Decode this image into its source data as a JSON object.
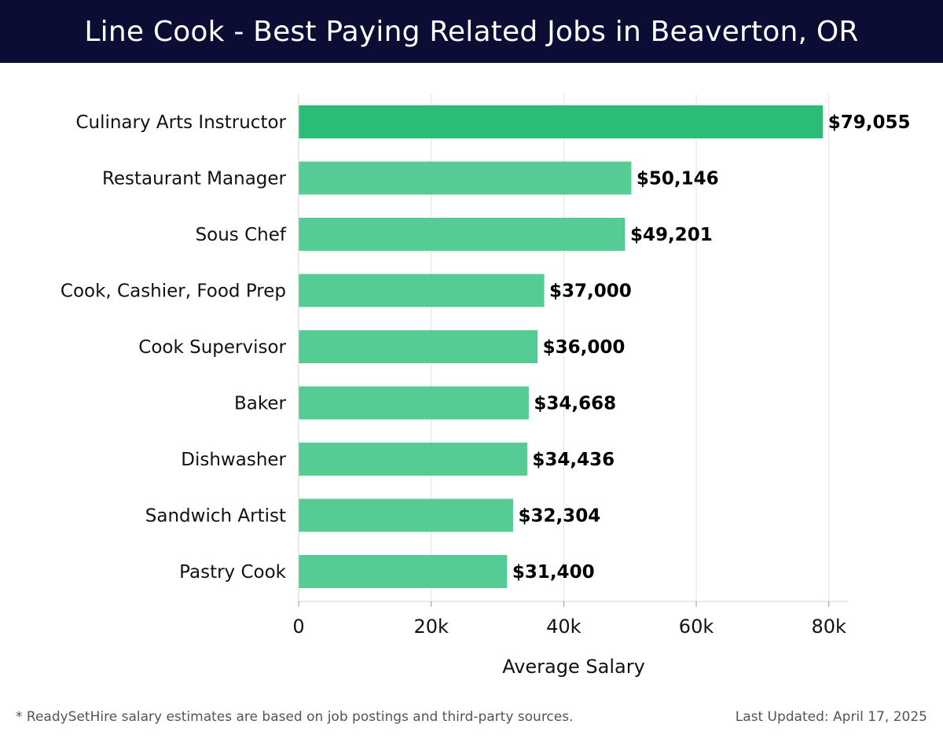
{
  "header": {
    "title": "Line Cook - Best Paying Related Jobs in Beaverton, OR"
  },
  "chart_data": {
    "type": "bar",
    "orientation": "horizontal",
    "categories": [
      "Culinary Arts Instructor",
      "Restaurant Manager",
      "Sous Chef",
      "Cook, Cashier, Food Prep",
      "Cook Supervisor",
      "Baker",
      "Dishwasher",
      "Sandwich Artist",
      "Pastry Cook"
    ],
    "values": [
      79055,
      50146,
      49201,
      37000,
      36000,
      34668,
      34436,
      32304,
      31400
    ],
    "value_labels": [
      "$79,055",
      "$50,146",
      "$49,201",
      "$37,000",
      "$36,000",
      "$34,668",
      "$34,436",
      "$32,304",
      "$31,400"
    ],
    "xlabel": "Average Salary",
    "xlim": [
      0,
      83000
    ],
    "xticks": [
      0,
      20000,
      40000,
      60000,
      80000
    ],
    "xtick_labels": [
      "0",
      "20k",
      "40k",
      "60k",
      "80k"
    ],
    "grid": "vertical",
    "highlight_color": "#2bbd77",
    "bar_color": "#55cc94"
  },
  "footer": {
    "note": "* ReadySetHire salary estimates are based on job postings and third-party sources.",
    "updated": "Last Updated: April 17, 2025"
  }
}
